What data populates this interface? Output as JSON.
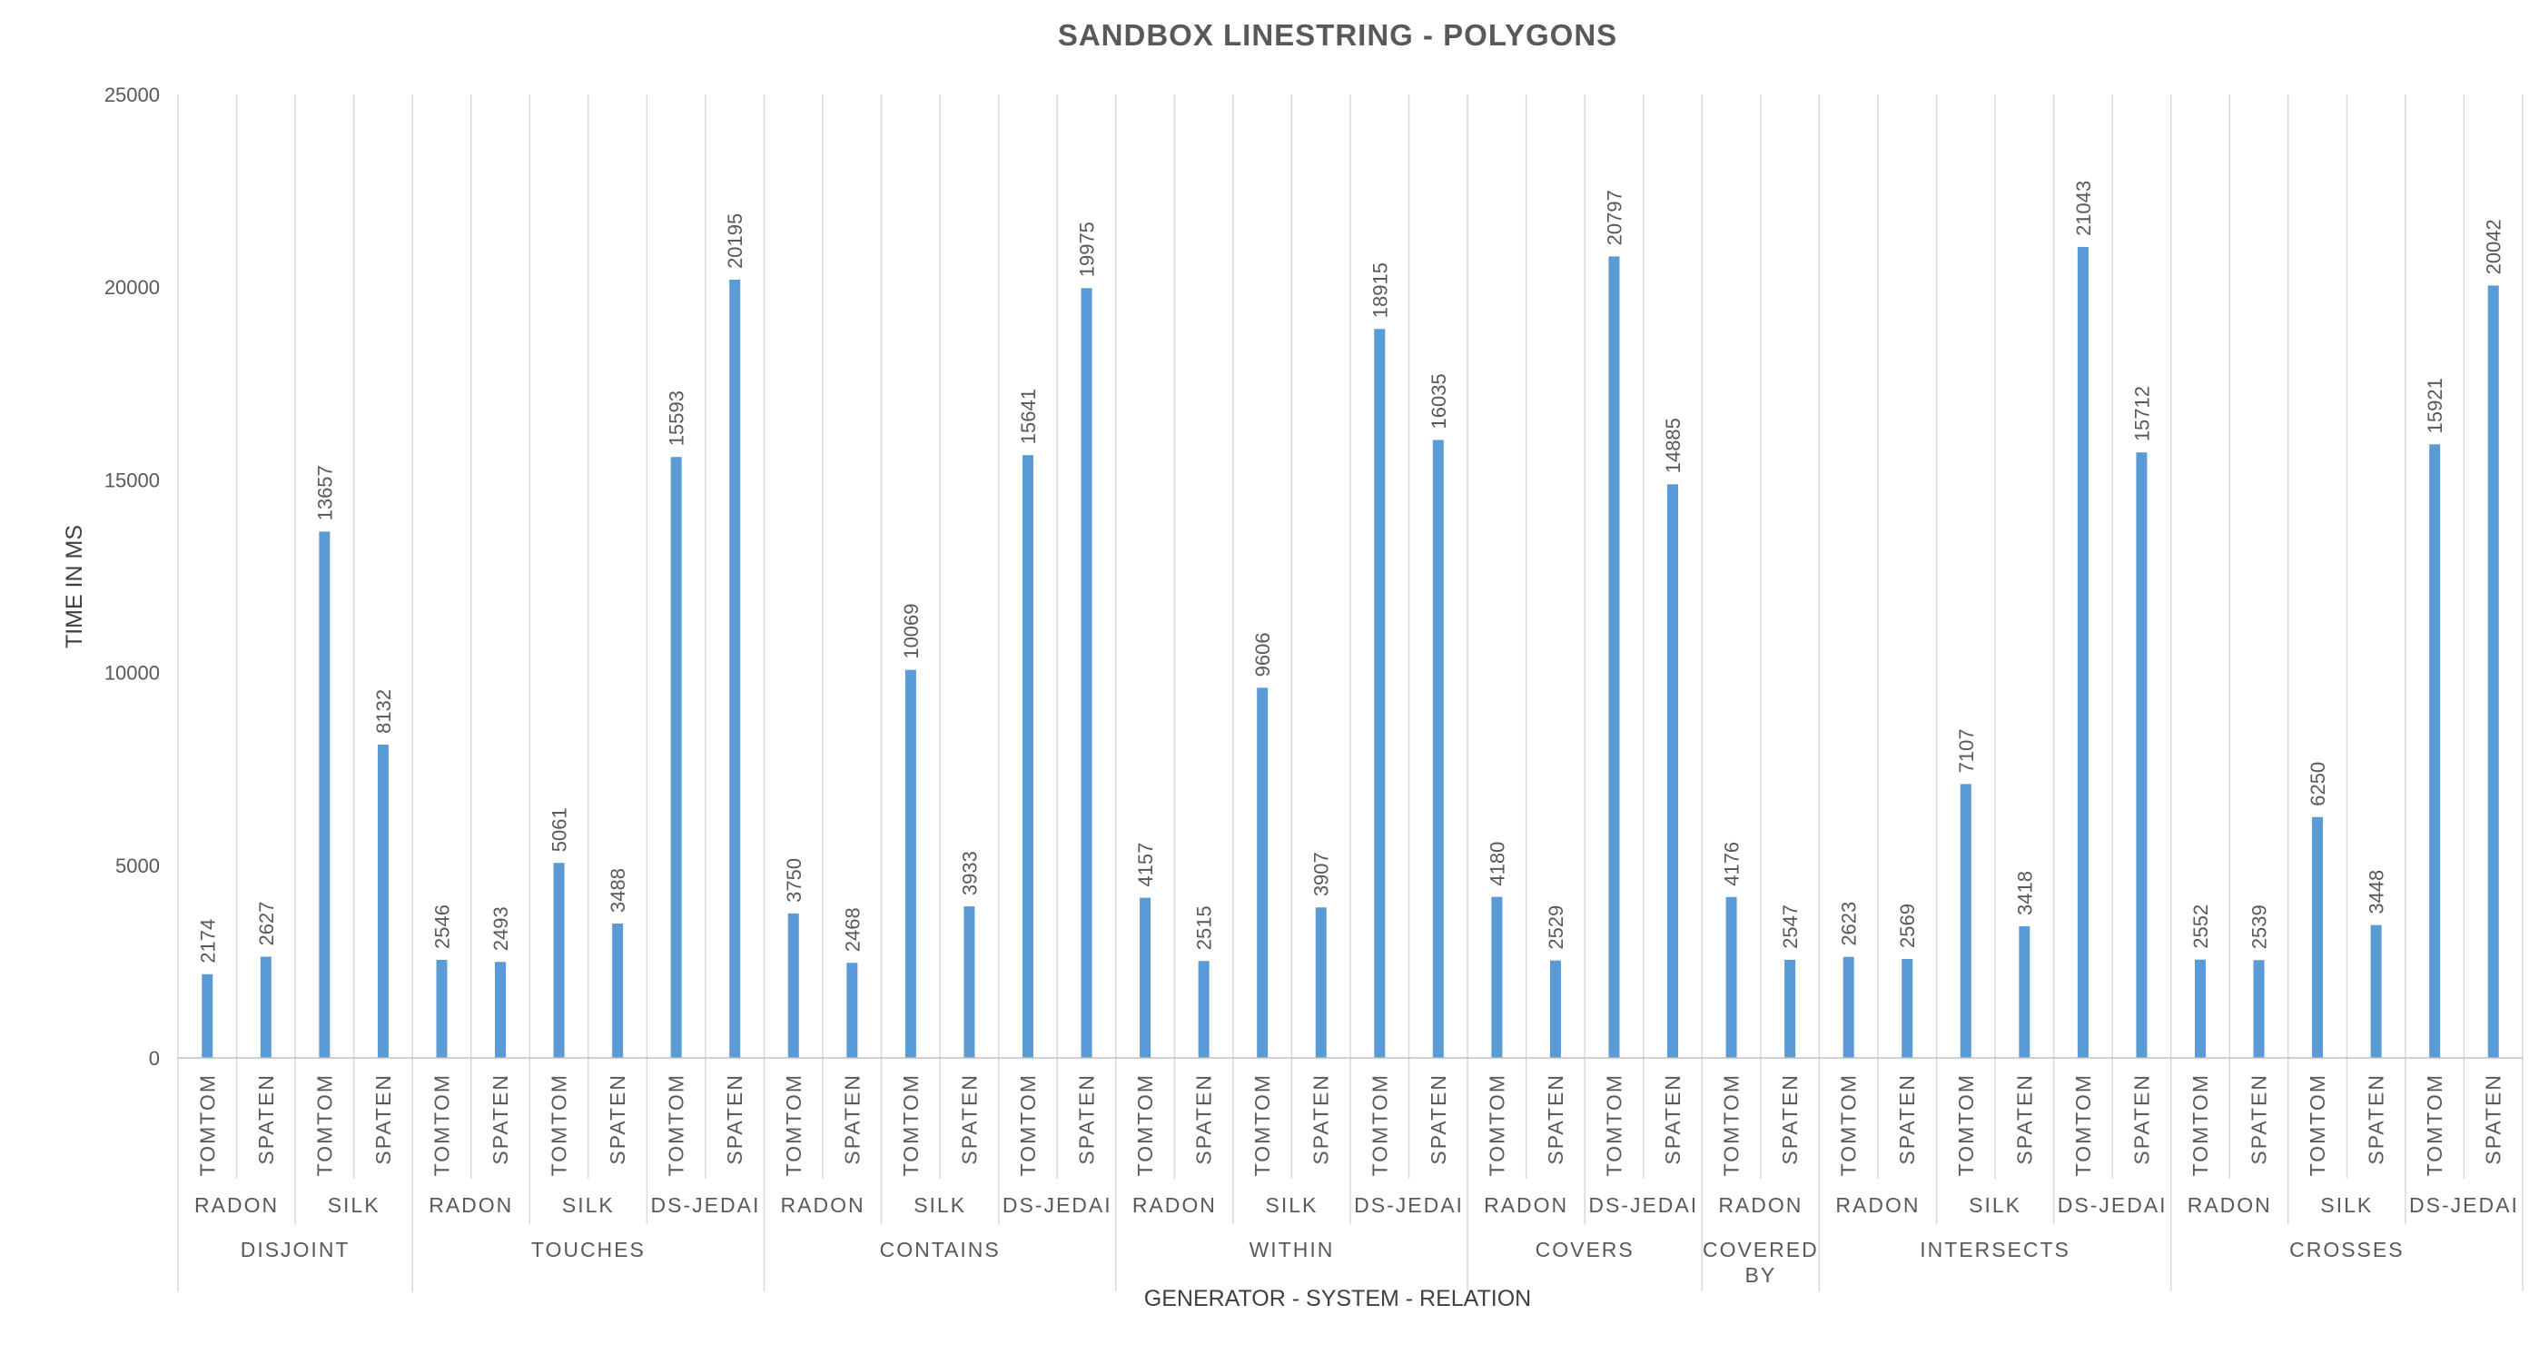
{
  "chart_data": {
    "type": "bar",
    "title": "SANDBOX LINESTRING - POLYGONS",
    "ylabel": "TIME IN MS",
    "xlabel": "GENERATOR - SYSTEM - RELATION",
    "ylim": [
      0,
      25000
    ],
    "yticks": [
      0,
      5000,
      10000,
      15000,
      20000,
      25000
    ],
    "grid": false,
    "legend": "none",
    "bar_color": "#5b9bd5",
    "relations": [
      {
        "name": "DISJOINT",
        "systems": [
          {
            "name": "RADON",
            "bars": [
              {
                "generator": "TOMTOM",
                "value": 2174
              },
              {
                "generator": "SPATEN",
                "value": 2627
              }
            ]
          },
          {
            "name": "SILK",
            "bars": [
              {
                "generator": "TOMTOM",
                "value": 13657
              },
              {
                "generator": "SPATEN",
                "value": 8132
              }
            ]
          }
        ]
      },
      {
        "name": "TOUCHES",
        "systems": [
          {
            "name": "RADON",
            "bars": [
              {
                "generator": "TOMTOM",
                "value": 2546
              },
              {
                "generator": "SPATEN",
                "value": 2493
              }
            ]
          },
          {
            "name": "SILK",
            "bars": [
              {
                "generator": "TOMTOM",
                "value": 5061
              },
              {
                "generator": "SPATEN",
                "value": 3488
              }
            ]
          },
          {
            "name": "DS-JEDAI",
            "bars": [
              {
                "generator": "TOMTOM",
                "value": 15593
              },
              {
                "generator": "SPATEN",
                "value": 20195
              }
            ]
          }
        ]
      },
      {
        "name": "CONTAINS",
        "systems": [
          {
            "name": "RADON",
            "bars": [
              {
                "generator": "TOMTOM",
                "value": 3750
              },
              {
                "generator": "SPATEN",
                "value": 2468
              }
            ]
          },
          {
            "name": "SILK",
            "bars": [
              {
                "generator": "TOMTOM",
                "value": 10069
              },
              {
                "generator": "SPATEN",
                "value": 3933
              }
            ]
          },
          {
            "name": "DS-JEDAI",
            "bars": [
              {
                "generator": "TOMTOM",
                "value": 15641
              },
              {
                "generator": "SPATEN",
                "value": 19975
              }
            ]
          }
        ]
      },
      {
        "name": "WITHIN",
        "systems": [
          {
            "name": "RADON",
            "bars": [
              {
                "generator": "TOMTOM",
                "value": 4157
              },
              {
                "generator": "SPATEN",
                "value": 2515
              }
            ]
          },
          {
            "name": "SILK",
            "bars": [
              {
                "generator": "TOMTOM",
                "value": 9606
              },
              {
                "generator": "SPATEN",
                "value": 3907
              }
            ]
          },
          {
            "name": "DS-JEDAI",
            "bars": [
              {
                "generator": "TOMTOM",
                "value": 18915
              },
              {
                "generator": "SPATEN",
                "value": 16035
              }
            ]
          }
        ]
      },
      {
        "name": "COVERS",
        "systems": [
          {
            "name": "RADON",
            "bars": [
              {
                "generator": "TOMTOM",
                "value": 4180
              },
              {
                "generator": "SPATEN",
                "value": 2529
              }
            ]
          },
          {
            "name": "DS-JEDAI",
            "bars": [
              {
                "generator": "TOMTOM",
                "value": 20797
              },
              {
                "generator": "SPATEN",
                "value": 14885
              }
            ]
          }
        ]
      },
      {
        "name": "COVERED BY",
        "systems": [
          {
            "name": "RADON",
            "bars": [
              {
                "generator": "TOMTOM",
                "value": 4176
              },
              {
                "generator": "SPATEN",
                "value": 2547
              }
            ]
          }
        ]
      },
      {
        "name": "INTERSECTS",
        "systems": [
          {
            "name": "RADON",
            "bars": [
              {
                "generator": "TOMTOM",
                "value": 2623
              },
              {
                "generator": "SPATEN",
                "value": 2569
              }
            ]
          },
          {
            "name": "SILK",
            "bars": [
              {
                "generator": "TOMTOM",
                "value": 7107
              },
              {
                "generator": "SPATEN",
                "value": 3418
              }
            ]
          },
          {
            "name": "DS-JEDAI",
            "bars": [
              {
                "generator": "TOMTOM",
                "value": 21043
              },
              {
                "generator": "SPATEN",
                "value": 15712
              }
            ]
          }
        ]
      },
      {
        "name": "CROSSES",
        "systems": [
          {
            "name": "RADON",
            "bars": [
              {
                "generator": "TOMTOM",
                "value": 2552
              },
              {
                "generator": "SPATEN",
                "value": 2539
              }
            ]
          },
          {
            "name": "SILK",
            "bars": [
              {
                "generator": "TOMTOM",
                "value": 6250
              },
              {
                "generator": "SPATEN",
                "value": 3448
              }
            ]
          },
          {
            "name": "DS-JEDAI",
            "bars": [
              {
                "generator": "TOMTOM",
                "value": 15921
              },
              {
                "generator": "SPATEN",
                "value": 20042
              }
            ]
          }
        ]
      }
    ]
  }
}
